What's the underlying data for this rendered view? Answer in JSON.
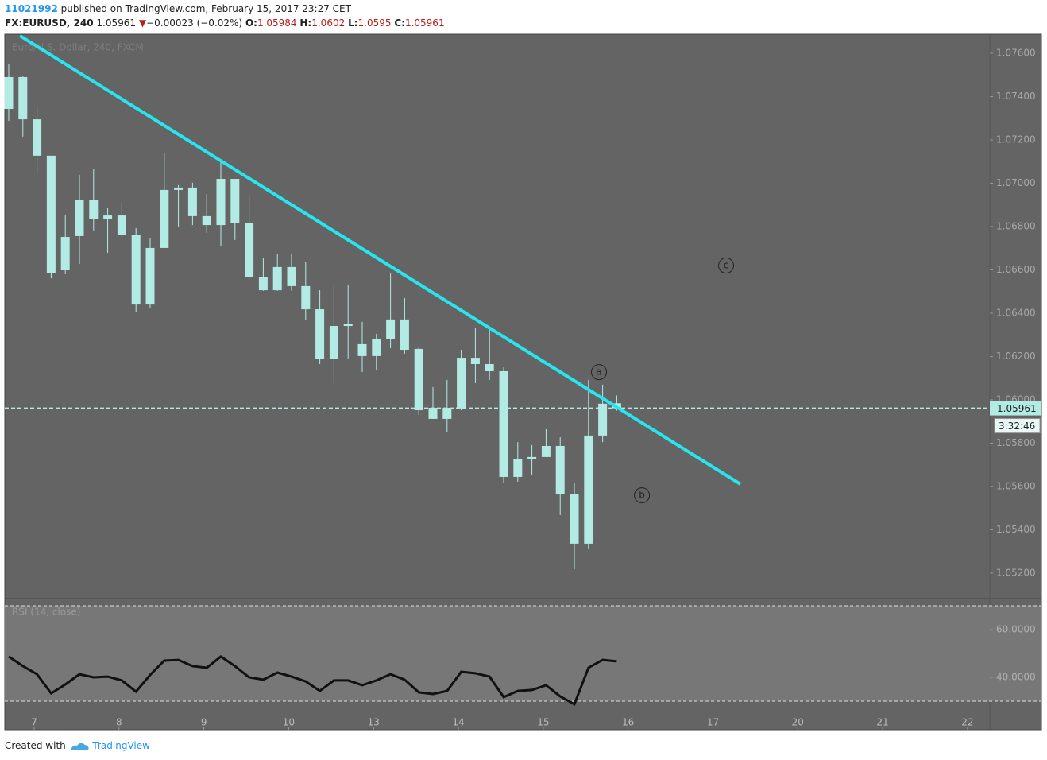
{
  "header": {
    "user": "11021992",
    "published": "published on TradingView.com, February 15, 2017 23:27 CET",
    "symbol": "FX:EURUSD, 240",
    "change_arrow": "▼",
    "change": "−0.00023 (−0.02%)",
    "o": "O:",
    "h": "H:",
    "l": "L:",
    "c": "C:"
  },
  "footer": {
    "created": "Created with",
    "brand": "TradingView"
  },
  "chart_data": {
    "type": "candlestick",
    "source_label": "Euro/U.S. Dollar, 240, FXCM",
    "color": "#b2ebe4",
    "x": [
      0,
      1,
      2,
      3,
      4,
      5,
      6,
      7,
      8,
      9,
      10,
      11,
      12,
      13,
      14,
      15,
      16,
      17,
      18,
      19,
      20,
      21,
      22,
      23,
      24,
      25,
      26,
      27,
      28,
      29,
      30,
      31,
      32,
      33,
      34,
      35,
      36,
      37,
      38,
      39,
      40,
      41,
      42,
      43
    ],
    "open": [
      1.07343,
      1.0749,
      1.07295,
      1.07127,
      1.06598,
      1.06756,
      1.06921,
      1.06851,
      1.06851,
      1.06763,
      1.0644,
      1.06701,
      1.06969,
      1.0698,
      1.06848,
      1.06807,
      1.0702,
      1.06818,
      1.06565,
      1.06506,
      1.06613,
      1.06525,
      1.06418,
      1.06187,
      1.06341,
      1.06257,
      1.06202,
      1.06282,
      1.06371,
      1.06235,
      1.05963,
      1.05912,
      1.0596,
      1.06194,
      1.06165,
      1.06132,
      1.05644,
      1.05725,
      1.05736,
      1.05787,
      1.05563,
      1.05336,
      1.05835,
      1.05984
    ],
    "high": [
      1.07552,
      1.07497,
      1.07358,
      1.07127,
      1.06855,
      1.07039,
      1.07064,
      1.06884,
      1.0691,
      1.06793,
      1.06745,
      1.07141,
      1.06991,
      1.07002,
      1.0695,
      1.07112,
      1.0702,
      1.06939,
      1.06653,
      1.06672,
      1.06672,
      1.06635,
      1.06506,
      1.06525,
      1.06532,
      1.0636,
      1.06305,
      1.06583,
      1.0647,
      1.06246,
      1.06059,
      1.06092,
      1.06231,
      1.06334,
      1.06334,
      1.0615,
      1.05805,
      1.05791,
      1.05864,
      1.05827,
      1.05615,
      1.06092,
      1.0607,
      1.0602
    ],
    "low": [
      1.07288,
      1.07215,
      1.07042,
      1.06561,
      1.0658,
      1.06627,
      1.06782,
      1.06679,
      1.06745,
      1.06407,
      1.06422,
      1.06701,
      1.068,
      1.06807,
      1.06771,
      1.06708,
      1.06738,
      1.06554,
      1.06503,
      1.06503,
      1.06503,
      1.06367,
      1.06165,
      1.06077,
      1.06191,
      1.06128,
      1.06136,
      1.06238,
      1.06213,
      1.0593,
      1.05912,
      1.05853,
      1.05952,
      1.06077,
      1.06092,
      1.05615,
      1.05622,
      1.05651,
      1.05736,
      1.05468,
      1.05218,
      1.05314,
      1.05805,
      1.0595
    ],
    "close": [
      1.0749,
      1.07295,
      1.07127,
      1.06587,
      1.06752,
      1.06921,
      1.06833,
      1.06833,
      1.06763,
      1.0644,
      1.06701,
      1.06969,
      1.0698,
      1.06848,
      1.06807,
      1.0702,
      1.06818,
      1.06565,
      1.06506,
      1.06613,
      1.06525,
      1.06418,
      1.06187,
      1.06341,
      1.06352,
      1.06202,
      1.06282,
      1.06371,
      1.06231,
      1.05952,
      1.05912,
      1.05963,
      1.06194,
      1.06165,
      1.06132,
      1.05644,
      1.05725,
      1.05736,
      1.05787,
      1.05563,
      1.05336,
      1.05835,
      1.05982,
      1.05961
    ],
    "xlim": [
      -0.28,
      69.38
    ],
    "xticks": [
      {
        "value": 1.8,
        "label": "7"
      },
      {
        "value": 7.8,
        "label": "8"
      },
      {
        "value": 13.8,
        "label": "9"
      },
      {
        "value": 19.8,
        "label": "10"
      },
      {
        "value": 25.8,
        "label": "13"
      },
      {
        "value": 31.8,
        "label": "14"
      },
      {
        "value": 37.8,
        "label": "15"
      },
      {
        "value": 43.8,
        "label": "16"
      },
      {
        "value": 49.8,
        "label": "17"
      },
      {
        "value": 55.8,
        "label": "20"
      },
      {
        "value": 61.8,
        "label": "21"
      },
      {
        "value": 67.8,
        "label": "22"
      }
    ],
    "ylim": [
      1.05086,
      1.07688
    ],
    "yticks": [
      {
        "value": 1.076,
        "label": "1.07600"
      },
      {
        "value": 1.074,
        "label": "1.07400"
      },
      {
        "value": 1.072,
        "label": "1.07200"
      },
      {
        "value": 1.07,
        "label": "1.07000"
      },
      {
        "value": 1.068,
        "label": "1.06800"
      },
      {
        "value": 1.066,
        "label": "1.06600"
      },
      {
        "value": 1.064,
        "label": "1.06400"
      },
      {
        "value": 1.062,
        "label": "1.06200"
      },
      {
        "value": 1.06,
        "label": "1.06000"
      },
      {
        "value": 1.058,
        "label": "1.05800"
      },
      {
        "value": 1.056,
        "label": "1.05600"
      },
      {
        "value": 1.054,
        "label": "1.05400"
      },
      {
        "value": 1.052,
        "label": "1.05200"
      }
    ],
    "countdown": "3:32:46",
    "trendline": {
      "x": [
        0.79,
        51.74
      ],
      "y": [
        1.07681,
        1.05611
      ],
      "color": "#26e6f0"
    },
    "annotations": [
      {
        "text": "a",
        "x": 41.74,
        "y": 1.06128
      },
      {
        "text": "b",
        "x": 44.78,
        "y": 1.05559
      },
      {
        "text": "c",
        "x": 50.73,
        "y": 1.0662
      }
    ],
    "rsi": {
      "name": "RSI (14, close)",
      "color": "#111111",
      "values": [
        48.7,
        44.7,
        41.3,
        33.3,
        37.0,
        41.3,
        40.0,
        40.3,
        38.7,
        34.0,
        41.0,
        47.0,
        47.3,
        44.7,
        44.0,
        48.7,
        44.7,
        40.0,
        39.0,
        42.0,
        40.3,
        38.3,
        34.3,
        38.7,
        38.7,
        36.7,
        38.7,
        41.3,
        39.0,
        33.7,
        33.0,
        34.3,
        42.3,
        41.7,
        40.3,
        31.7,
        34.3,
        34.7,
        36.7,
        32.0,
        28.7,
        44.0,
        47.3,
        46.7
      ],
      "ylim": [
        18,
        73
      ],
      "yticks": [
        {
          "value": 60,
          "label": "60.0000"
        },
        {
          "value": 40,
          "label": "40.0000"
        }
      ],
      "bands": [
        70,
        30
      ]
    }
  }
}
